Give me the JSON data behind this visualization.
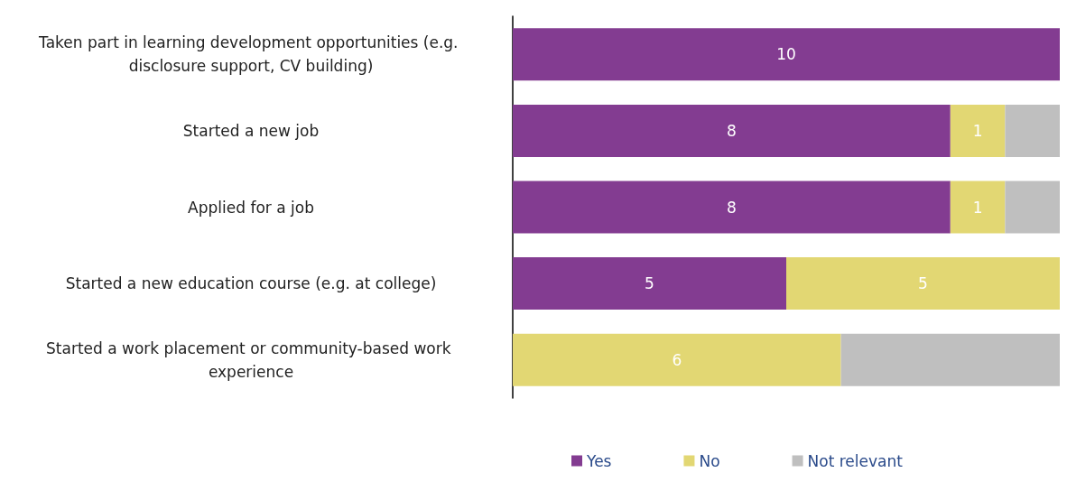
{
  "chart_data": {
    "type": "bar",
    "orientation": "horizontal",
    "stacked": true,
    "legend": "bottom",
    "categories": [
      "Taken part in learning development opportunities (e.g. disclosure support, CV building)",
      "Started a new job",
      "Applied for a job",
      "Started a new education course (e.g. at college)",
      "Started a work placement or community-based work experience"
    ],
    "series": [
      {
        "name": "Yes",
        "color": "#833c91",
        "values": [
          10,
          8,
          8,
          5,
          0
        ],
        "value_labels": [
          "10",
          "8",
          "8",
          "5",
          null
        ]
      },
      {
        "name": "No",
        "color": "#e2d773",
        "values": [
          0,
          1,
          1,
          5,
          6
        ],
        "value_labels": [
          null,
          "1",
          "1",
          "5",
          "6"
        ]
      },
      {
        "name": "Not relevant",
        "color": "#bfbfbf",
        "values": [
          0,
          1,
          1,
          0,
          4
        ],
        "value_labels": [
          null,
          null,
          null,
          null,
          null
        ]
      }
    ]
  }
}
